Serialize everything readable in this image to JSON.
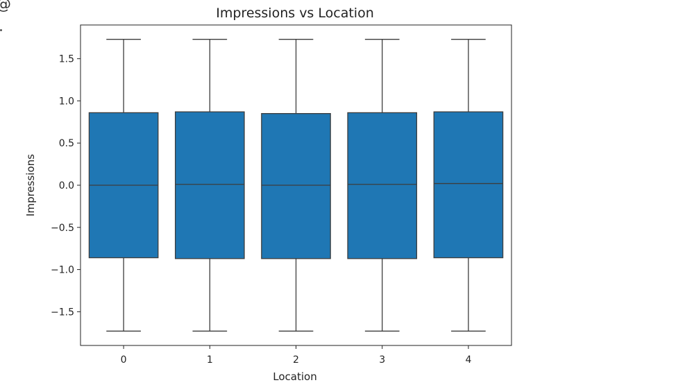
{
  "chart_data": {
    "type": "box",
    "title": "Impressions vs Location",
    "xlabel": "Location",
    "ylabel": "Impressions",
    "categories": [
      "0",
      "1",
      "2",
      "3",
      "4"
    ],
    "ylim": [
      -1.9,
      1.9
    ],
    "yticks": [
      -1.5,
      -1.0,
      -0.5,
      0.0,
      0.5,
      1.0,
      1.5
    ],
    "ytick_labels": [
      "−1.5",
      "−1.0",
      "−0.5",
      "0.0",
      "0.5",
      "1.0",
      "1.5"
    ],
    "box_color": "#1f77b4",
    "line_color": "#3d3d3d",
    "grid": false,
    "boxes": [
      {
        "category": "0",
        "whisker_low": -1.73,
        "q1": -0.86,
        "median": 0.0,
        "q3": 0.86,
        "whisker_high": 1.73
      },
      {
        "category": "1",
        "whisker_low": -1.73,
        "q1": -0.87,
        "median": 0.01,
        "q3": 0.87,
        "whisker_high": 1.73
      },
      {
        "category": "2",
        "whisker_low": -1.73,
        "q1": -0.87,
        "median": 0.0,
        "q3": 0.85,
        "whisker_high": 1.73
      },
      {
        "category": "3",
        "whisker_low": -1.73,
        "q1": -0.87,
        "median": 0.01,
        "q3": 0.86,
        "whisker_high": 1.73
      },
      {
        "category": "4",
        "whisker_low": -1.73,
        "q1": -0.86,
        "median": 0.02,
        "q3": 0.87,
        "whisker_high": 1.73
      }
    ]
  }
}
